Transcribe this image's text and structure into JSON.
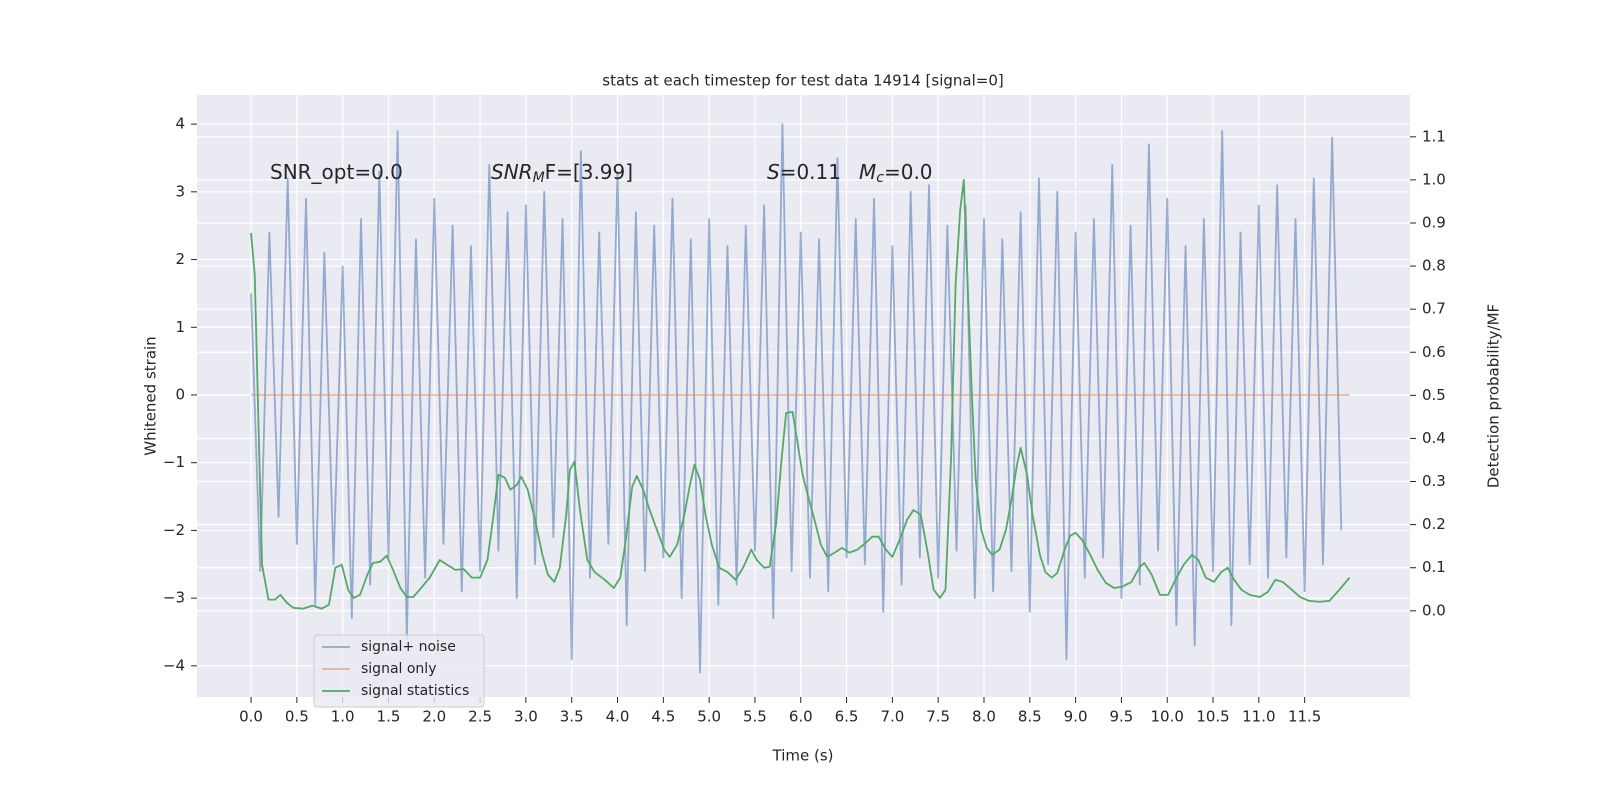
{
  "chart_data": {
    "type": "line",
    "title": "stats at each timestep for test data 14914 [signal=0]",
    "xlabel": "Time (s)",
    "ylabel": "Whitened strain",
    "y2label": "Detection probability/MF",
    "xlim": [
      -0.59,
      12.65
    ],
    "xticks": [
      {
        "value": 0,
        "label": "0.0"
      },
      0.5,
      {
        "value": 1,
        "label": "1.0"
      },
      1.5,
      {
        "value": 2,
        "label": "2.0"
      },
      2.5,
      {
        "value": 3,
        "label": "3.0"
      },
      3.5,
      {
        "value": 4,
        "label": "4.0"
      },
      4.5,
      {
        "value": 5,
        "label": "5.0"
      },
      5.5,
      {
        "value": 6,
        "label": "6.0"
      },
      6.5,
      {
        "value": 7,
        "label": "7.0"
      },
      7.5,
      {
        "value": 8,
        "label": "8.0"
      },
      8.5,
      {
        "value": 9,
        "label": "9.0"
      },
      9.5,
      {
        "value": 10,
        "label": "10.0"
      },
      10.5,
      {
        "value": 11,
        "label": "11.0"
      },
      11.5
    ],
    "ylim": [
      -4.46,
      4.43
    ],
    "yticks": [
      {
        "value": -4,
        "label": "−4"
      },
      {
        "value": -3,
        "label": "−3"
      },
      {
        "value": -2,
        "label": "−2"
      },
      {
        "value": -1,
        "label": "−1"
      },
      0,
      1,
      2,
      3,
      4
    ],
    "y2lim": [
      -0.2,
      1.197
    ],
    "y2ticks": [
      {
        "value": 0,
        "label": "0.0"
      },
      0.1,
      0.2,
      0.3,
      0.4,
      0.5,
      0.6,
      0.7,
      0.8,
      0.9,
      {
        "value": 1,
        "label": "1.0"
      },
      1.1
    ],
    "grid": true,
    "legend": "lower left",
    "annotations": [
      [
        {
          "text": "SNR_opt=0.0"
        }
      ],
      [
        {
          "text": "SNR",
          "italic": true
        },
        {
          "text": "M",
          "italic": true,
          "sub": true
        },
        {
          "text": "F=[3.99]"
        }
      ],
      [
        {
          "text": "S",
          "italic": true
        },
        {
          "text": "=0.11"
        }
      ],
      [
        {
          "text": "M",
          "italic": true
        },
        {
          "text": "c",
          "italic": true,
          "sub": true
        },
        {
          "text": "=0.0"
        }
      ]
    ],
    "series": [
      {
        "name": "signal+ noise",
        "color": "#4c72b0",
        "alpha": 0.55,
        "x": [
          0.0,
          0.1,
          0.2,
          0.3,
          0.4,
          0.5,
          0.6,
          0.7,
          0.8,
          0.9,
          1.0,
          1.1,
          1.2,
          1.3,
          1.4,
          1.5,
          1.6,
          1.7,
          1.8,
          1.9,
          2.0,
          2.1,
          2.2,
          2.3,
          2.4,
          2.5,
          2.6,
          2.7,
          2.8,
          2.9,
          3.0,
          3.1,
          3.2,
          3.3,
          3.4,
          3.5,
          3.6,
          3.7,
          3.8,
          3.9,
          4.0,
          4.1,
          4.2,
          4.3,
          4.4,
          4.5,
          4.6,
          4.7,
          4.8,
          4.9,
          5.0,
          5.1,
          5.2,
          5.3,
          5.4,
          5.5,
          5.6,
          5.7,
          5.8,
          5.9,
          6.0,
          6.1,
          6.2,
          6.3,
          6.4,
          6.5,
          6.6,
          6.7,
          6.8,
          6.9,
          7.0,
          7.1,
          7.2,
          7.3,
          7.4,
          7.5,
          7.6,
          7.7,
          7.8,
          7.9,
          8.0,
          8.1,
          8.2,
          8.3,
          8.4,
          8.5,
          8.6,
          8.7,
          8.8,
          8.9,
          9.0,
          9.1,
          9.2,
          9.3,
          9.4,
          9.5,
          9.6,
          9.7,
          9.8,
          9.9,
          10.0,
          10.1,
          10.2,
          10.3,
          10.4,
          10.5,
          10.6,
          10.7,
          10.8,
          10.9,
          11.0,
          11.1,
          11.2,
          11.3,
          11.4,
          11.5,
          11.6,
          11.7,
          11.8,
          11.9
        ],
        "values": [
          1.5,
          -2.6,
          2.4,
          -1.8,
          3.2,
          -2.2,
          2.9,
          -3.1,
          2.1,
          -2.5,
          1.9,
          -3.3,
          2.6,
          -2.8,
          3.3,
          -2.4,
          3.9,
          -3.6,
          2.3,
          -2.7,
          2.9,
          -2.2,
          2.5,
          -2.9,
          2.2,
          -2.6,
          3.4,
          -2.3,
          2.7,
          -3.0,
          2.8,
          -2.5,
          3.0,
          -2.1,
          2.6,
          -3.9,
          3.6,
          -2.7,
          2.4,
          -2.2,
          3.3,
          -3.4,
          2.7,
          -2.6,
          2.5,
          -2.4,
          2.9,
          -3.0,
          2.3,
          -4.1,
          2.6,
          -3.1,
          2.2,
          -2.8,
          2.5,
          -2.3,
          2.8,
          -3.3,
          4.0,
          -2.6,
          2.4,
          -2.7,
          2.3,
          -2.9,
          3.5,
          -2.4,
          2.6,
          -2.5,
          2.9,
          -3.2,
          2.2,
          -2.8,
          3.0,
          -2.4,
          3.1,
          -2.7,
          2.5,
          -2.3,
          2.8,
          -3.0,
          2.6,
          -2.9,
          2.3,
          -2.6,
          2.7,
          -3.2,
          3.2,
          -2.5,
          3.0,
          -3.9,
          2.4,
          -2.7,
          2.6,
          -2.4,
          3.4,
          -3.0,
          2.5,
          -2.8,
          3.7,
          -2.3,
          2.9,
          -3.4,
          2.2,
          -3.7,
          2.6,
          -2.6,
          3.9,
          -3.4,
          2.4,
          -2.5,
          2.8,
          -2.7,
          3.1,
          -2.4,
          2.6,
          -2.9,
          3.2,
          -2.5,
          3.8,
          -2.0
        ]
      },
      {
        "name": "signal only",
        "color": "#dd8452",
        "alpha": 0.55,
        "x": [
          0,
          11.99
        ],
        "values": [
          0,
          0
        ]
      },
      {
        "name": "signal statistics",
        "color": "#55a868",
        "axis": "y2",
        "x": [
          0,
          0.04,
          0.12,
          0.19,
          0.26,
          0.32,
          0.39,
          0.46,
          0.57,
          0.67,
          0.77,
          0.85,
          0.92,
          0.99,
          1.06,
          1.12,
          1.19,
          1.27,
          1.33,
          1.41,
          1.48,
          1.54,
          1.63,
          1.7,
          1.77,
          1.84,
          1.95,
          2.06,
          2.14,
          2.23,
          2.32,
          2.41,
          2.5,
          2.58,
          2.64,
          2.7,
          2.77,
          2.83,
          2.9,
          2.95,
          3.02,
          3.1,
          3.18,
          3.24,
          3.31,
          3.37,
          3.44,
          3.48,
          3.53,
          3.59,
          3.67,
          3.75,
          3.86,
          3.96,
          4.03,
          4.09,
          4.16,
          4.21,
          4.28,
          4.35,
          4.43,
          4.51,
          4.57,
          4.65,
          4.73,
          4.79,
          4.84,
          4.9,
          4.96,
          5.03,
          5.11,
          5.2,
          5.29,
          5.37,
          5.46,
          5.52,
          5.6,
          5.66,
          5.73,
          5.79,
          5.84,
          5.91,
          5.96,
          6.02,
          6.09,
          6.15,
          6.22,
          6.29,
          6.37,
          6.45,
          6.53,
          6.62,
          6.71,
          6.78,
          6.85,
          6.93,
          7.0,
          7.08,
          7.16,
          7.23,
          7.31,
          7.39,
          7.45,
          7.52,
          7.58,
          7.64,
          7.69,
          7.74,
          7.78,
          7.82,
          7.87,
          7.91,
          7.97,
          8.03,
          8.09,
          8.17,
          8.24,
          8.3,
          8.36,
          8.4,
          8.47,
          8.53,
          8.61,
          8.67,
          8.74,
          8.8,
          8.88,
          8.94,
          9.0,
          9.07,
          9.16,
          9.24,
          9.33,
          9.42,
          9.51,
          9.61,
          9.7,
          9.75,
          9.83,
          9.92,
          10.01,
          10.09,
          10.18,
          10.27,
          10.34,
          10.42,
          10.51,
          10.59,
          10.66,
          10.73,
          10.81,
          10.9,
          11.01,
          11.1,
          11.18,
          11.26,
          11.36,
          11.45,
          11.55,
          11.66,
          11.77,
          11.88,
          11.99
        ],
        "values": [
          0.877,
          0.78,
          0.107,
          0.026,
          0.026,
          0.037,
          0.019,
          0.007,
          0.005,
          0.012,
          0.005,
          0.014,
          0.1,
          0.107,
          0.049,
          0.03,
          0.037,
          0.084,
          0.111,
          0.114,
          0.128,
          0.1,
          0.053,
          0.032,
          0.032,
          0.049,
          0.077,
          0.118,
          0.107,
          0.095,
          0.097,
          0.077,
          0.077,
          0.118,
          0.211,
          0.316,
          0.309,
          0.281,
          0.292,
          0.311,
          0.281,
          0.211,
          0.13,
          0.084,
          0.067,
          0.1,
          0.223,
          0.327,
          0.346,
          0.234,
          0.118,
          0.09,
          0.072,
          0.053,
          0.077,
          0.165,
          0.288,
          0.313,
          0.281,
          0.234,
          0.188,
          0.142,
          0.125,
          0.153,
          0.223,
          0.292,
          0.339,
          0.304,
          0.223,
          0.153,
          0.1,
          0.09,
          0.072,
          0.1,
          0.142,
          0.118,
          0.1,
          0.102,
          0.2,
          0.35,
          0.459,
          0.462,
          0.397,
          0.316,
          0.258,
          0.211,
          0.153,
          0.125,
          0.135,
          0.146,
          0.135,
          0.142,
          0.158,
          0.172,
          0.172,
          0.142,
          0.125,
          0.165,
          0.211,
          0.234,
          0.223,
          0.13,
          0.049,
          0.03,
          0.049,
          0.35,
          0.756,
          0.93,
          1.0,
          0.768,
          0.49,
          0.304,
          0.188,
          0.146,
          0.13,
          0.142,
          0.188,
          0.258,
          0.339,
          0.378,
          0.316,
          0.223,
          0.13,
          0.09,
          0.077,
          0.088,
          0.142,
          0.174,
          0.181,
          0.165,
          0.13,
          0.095,
          0.065,
          0.053,
          0.056,
          0.067,
          0.102,
          0.111,
          0.084,
          0.037,
          0.037,
          0.072,
          0.107,
          0.13,
          0.118,
          0.077,
          0.067,
          0.09,
          0.1,
          0.072,
          0.049,
          0.037,
          0.032,
          0.044,
          0.072,
          0.067,
          0.049,
          0.032,
          0.023,
          0.021,
          0.023,
          0.049,
          0.077
        ]
      }
    ]
  }
}
